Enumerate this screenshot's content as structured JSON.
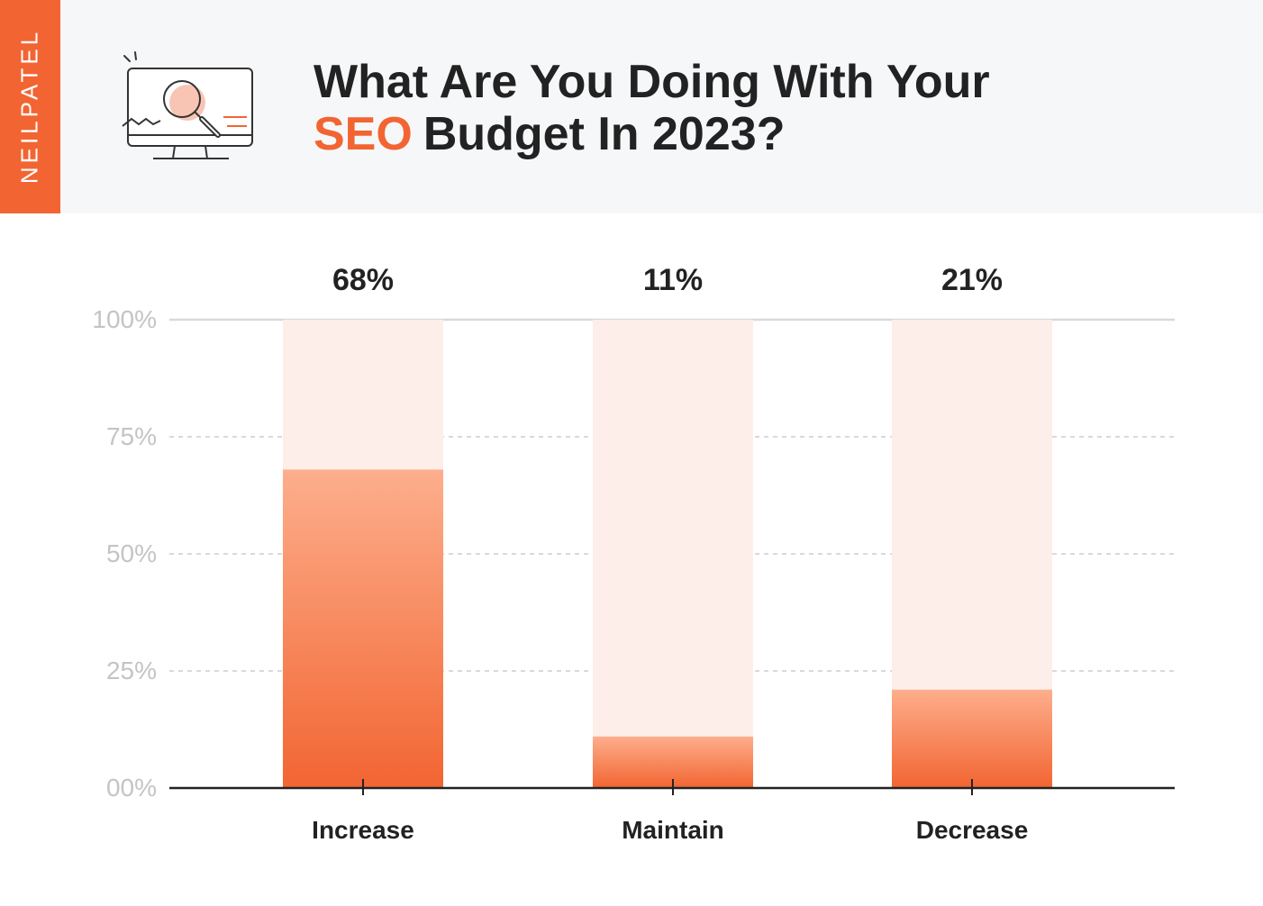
{
  "brand": {
    "name": "NEILPATEL"
  },
  "header": {
    "icon": "monitor-magnifier-icon",
    "title_line1": "What Are You Doing With Your",
    "title_highlight": "SEO",
    "title_rest": "Budget In 2023?"
  },
  "colors": {
    "accent": "#f26532",
    "bar_top": "#fdae8c",
    "bar_bottom": "#f26532",
    "bar_background": "#fdeee9",
    "header_bg": "#f6f7f9",
    "axis_text": "#c4c4c4",
    "grid": "#d9d9d9",
    "text": "#222222"
  },
  "chart_data": {
    "type": "bar",
    "categories": [
      "Increase",
      "Maintain",
      "Decrease"
    ],
    "values": [
      68,
      11,
      21
    ],
    "value_labels": [
      "68%",
      "11%",
      "21%"
    ],
    "title": "What Are You Doing With Your SEO Budget In 2023?",
    "xlabel": "",
    "ylabel": "",
    "ylim": [
      0,
      100
    ],
    "yticks": [
      0,
      25,
      50,
      75,
      100
    ],
    "ytick_labels": [
      "00%",
      "25%",
      "50%",
      "75%",
      "100%"
    ],
    "grid": true,
    "legend": "none"
  }
}
